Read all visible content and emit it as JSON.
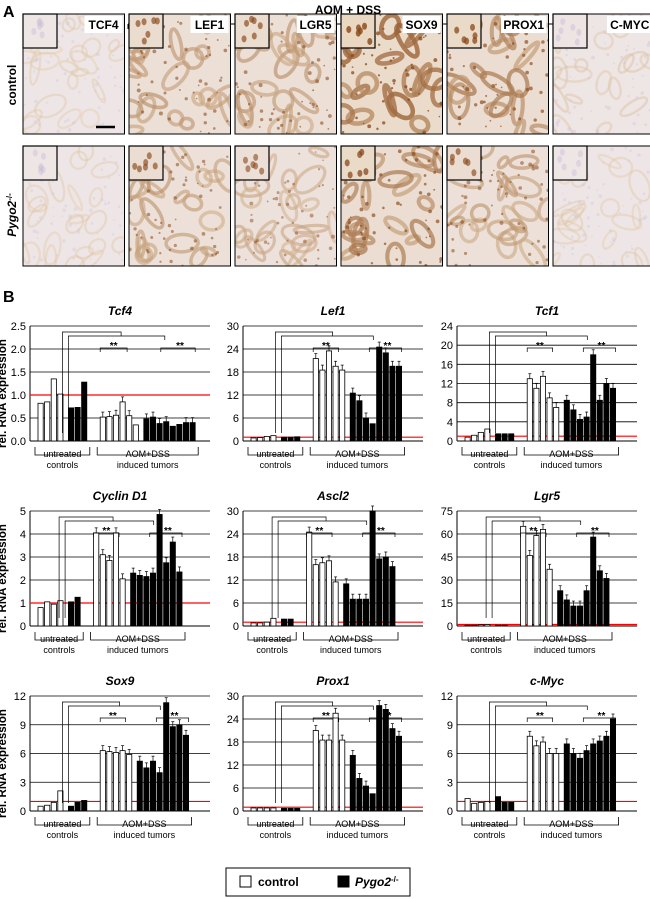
{
  "panel_a": {
    "label": "A",
    "treatment": "AOM + DSS",
    "row_labels": [
      "control",
      "Pygo2"
    ],
    "row_label_sup": "-/-",
    "columns": [
      "TCF4",
      "LEF1",
      "LGR5",
      "SOX9",
      "PROX1",
      "C-MYC"
    ],
    "stain_intensity": {
      "control": [
        0.1,
        0.55,
        0.55,
        0.85,
        0.7,
        0.15
      ],
      "pygo2": [
        0.1,
        0.5,
        0.4,
        0.7,
        0.5,
        0.1
      ]
    },
    "colors": {
      "tissue": "#efe7ea",
      "stain_light": "#e6cfae",
      "stain_dark": "#8a4a1c",
      "hema": "#c9bdd8"
    }
  },
  "panel_b": {
    "label": "B",
    "ylabel": "rel. RNA expression",
    "group_labels": {
      "untreated_1": "untreated",
      "untreated_2": "controls",
      "aom_1": "AOM+DSS",
      "aom_2": "induced  tumors"
    },
    "significance": "**",
    "legend": {
      "control": "control",
      "pygo2": "Pygo2",
      "pygo2_sup": "-/-"
    },
    "colors": {
      "control_fill": "#ffffff",
      "pygo2_fill": "#000000",
      "reference_line": "#ff0000"
    }
  },
  "chart_data": [
    {
      "type": "bar",
      "title": "Tcf4",
      "ylabel": "rel. RNA expression",
      "ylim": [
        0,
        2.5
      ],
      "yticks": [
        "0.0",
        "0.5",
        "1.0",
        "1.5",
        "2.0",
        "2.5"
      ],
      "reference": 1,
      "series": [
        {
          "name": "control",
          "group": "untreated",
          "values": [
            0.82,
            0.85,
            1.35,
            1.02
          ]
        },
        {
          "name": "Pygo2-/-",
          "group": "untreated",
          "values": [
            0.72,
            0.73,
            1.28
          ]
        },
        {
          "name": "control",
          "group": "AOM+DSS",
          "values": [
            0.52,
            0.53,
            0.56,
            0.85,
            0.55,
            0.35
          ]
        },
        {
          "name": "Pygo2-/-",
          "group": "AOM+DSS",
          "values": [
            0.48,
            0.52,
            0.38,
            0.42,
            0.32,
            0.36,
            0.4,
            0.4
          ]
        }
      ]
    },
    {
      "type": "bar",
      "title": "Lef1",
      "ylabel": "",
      "ylim": [
        0,
        30
      ],
      "yticks": [
        "0",
        "6",
        "12",
        "18",
        "24",
        "30"
      ],
      "reference": 1,
      "series": [
        {
          "name": "control",
          "group": "untreated",
          "values": [
            0.8,
            0.9,
            1.2,
            1.4
          ]
        },
        {
          "name": "Pygo2-/-",
          "group": "untreated",
          "values": [
            1.0,
            1.0,
            1.1
          ]
        },
        {
          "name": "control",
          "group": "AOM+DSS",
          "values": [
            21.5,
            18.5,
            23.5,
            19.5,
            18.5
          ]
        },
        {
          "name": "Pygo2-/-",
          "group": "AOM+DSS",
          "values": [
            12.5,
            10.5,
            6,
            4.5,
            24.5,
            23,
            19.5,
            19.5
          ]
        }
      ]
    },
    {
      "type": "bar",
      "title": "Tcf1",
      "ylabel": "",
      "ylim": [
        0,
        24
      ],
      "yticks": [
        "0",
        "4",
        "8",
        "12",
        "16",
        "20",
        "24"
      ],
      "reference": 1,
      "series": [
        {
          "name": "control",
          "group": "untreated",
          "values": [
            0.8,
            1.2,
            1.8,
            2.5
          ]
        },
        {
          "name": "Pygo2-/-",
          "group": "untreated",
          "values": [
            1.5,
            1.5,
            1.5
          ]
        },
        {
          "name": "control",
          "group": "AOM+DSS",
          "values": [
            13,
            11,
            13.5,
            9,
            7
          ]
        },
        {
          "name": "Pygo2-/-",
          "group": "AOM+DSS",
          "values": [
            8.5,
            6.5,
            4.5,
            5,
            18,
            8.5,
            12,
            11
          ]
        }
      ]
    },
    {
      "type": "bar",
      "title": "Cyclin D1",
      "ylabel": "rel. RNA expression",
      "ylim": [
        0,
        5
      ],
      "yticks": [
        "0",
        "1",
        "2",
        "3",
        "4",
        "5"
      ],
      "reference": 1,
      "series": [
        {
          "name": "control",
          "group": "untreated",
          "values": [
            0.8,
            1.05,
            0.95,
            1.1
          ]
        },
        {
          "name": "Pygo2-/-",
          "group": "untreated",
          "values": [
            1.05,
            1.25
          ]
        },
        {
          "name": "control",
          "group": "AOM+DSS",
          "values": [
            4.05,
            3.1,
            2.85,
            4.05,
            2.05
          ]
        },
        {
          "name": "Pygo2-/-",
          "group": "AOM+DSS",
          "values": [
            2.3,
            2.2,
            2.15,
            2.3,
            4.85,
            2.75,
            3.65,
            2.35
          ]
        }
      ]
    },
    {
      "type": "bar",
      "title": "Ascl2",
      "ylabel": "",
      "ylim": [
        0,
        30
      ],
      "yticks": [
        "0",
        "6",
        "12",
        "18",
        "24",
        "30"
      ],
      "reference": 1,
      "series": [
        {
          "name": "control",
          "group": "untreated",
          "values": [
            0.8,
            0.8,
            1.0,
            2.0
          ]
        },
        {
          "name": "Pygo2-/-",
          "group": "untreated",
          "values": [
            1.8,
            1.8
          ]
        },
        {
          "name": "control",
          "group": "AOM+DSS",
          "values": [
            24.5,
            16,
            16.5,
            17,
            11.5
          ]
        },
        {
          "name": "Pygo2-/-",
          "group": "AOM+DSS",
          "values": [
            11,
            7,
            7,
            7,
            30,
            17.5,
            18,
            15.5
          ]
        }
      ]
    },
    {
      "type": "bar",
      "title": "Lgr5",
      "ylabel": "",
      "ylim": [
        0,
        75
      ],
      "yticks": [
        "0",
        "15",
        "30",
        "45",
        "60",
        "75"
      ],
      "reference": 1,
      "series": [
        {
          "name": "control",
          "group": "untreated",
          "values": [
            0.5,
            0.5,
            0.8,
            1.0
          ]
        },
        {
          "name": "Pygo2-/-",
          "group": "untreated",
          "values": [
            0.5,
            0.5
          ]
        },
        {
          "name": "control",
          "group": "AOM+DSS",
          "values": [
            65,
            46,
            59,
            63,
            37
          ]
        },
        {
          "name": "Pygo2-/-",
          "group": "AOM+DSS",
          "values": [
            23,
            17,
            13,
            13,
            23,
            58,
            36,
            31
          ]
        }
      ]
    },
    {
      "type": "bar",
      "title": "Sox9",
      "ylabel": "rel. RNA expression",
      "ylim": [
        0,
        12
      ],
      "yticks": [
        "0",
        "3",
        "6",
        "9",
        "12"
      ],
      "reference": 1,
      "series": [
        {
          "name": "control",
          "group": "untreated",
          "values": [
            0.5,
            0.6,
            0.9,
            2.1
          ]
        },
        {
          "name": "Pygo2-/-",
          "group": "untreated",
          "values": [
            0.5,
            0.9,
            1.1
          ]
        },
        {
          "name": "control",
          "group": "AOM+DSS",
          "values": [
            6.3,
            6.2,
            6.1,
            6.3,
            5.9
          ]
        },
        {
          "name": "Pygo2-/-",
          "group": "AOM+DSS",
          "values": [
            5.2,
            4.5,
            5.2,
            4.0,
            11.3,
            8.8,
            9.0,
            7.9
          ]
        }
      ]
    },
    {
      "type": "bar",
      "title": "Prox1",
      "ylabel": "",
      "ylim": [
        0,
        30
      ],
      "yticks": [
        "0",
        "6",
        "12",
        "18",
        "24",
        "30"
      ],
      "reference": 1,
      "series": [
        {
          "name": "control",
          "group": "untreated",
          "values": [
            0.8,
            0.8,
            0.8,
            0.8
          ]
        },
        {
          "name": "Pygo2-/-",
          "group": "untreated",
          "values": [
            0.7,
            0.7,
            0.7
          ]
        },
        {
          "name": "control",
          "group": "AOM+DSS",
          "values": [
            21,
            18.5,
            18.5,
            25.5,
            18.5
          ]
        },
        {
          "name": "Pygo2-/-",
          "group": "AOM+DSS",
          "values": [
            14.5,
            8.5,
            6.5,
            4.5,
            27.5,
            26.5,
            21.5,
            19.5
          ]
        }
      ]
    },
    {
      "type": "bar",
      "title": "c-Myc",
      "ylabel": "",
      "ylim": [
        0,
        12
      ],
      "yticks": [
        "0",
        "3",
        "6",
        "9",
        "12"
      ],
      "reference": 1,
      "series": [
        {
          "name": "control",
          "group": "untreated",
          "values": [
            1.3,
            0.8,
            0.9,
            1.0
          ]
        },
        {
          "name": "Pygo2-/-",
          "group": "untreated",
          "values": [
            1.5,
            0.9,
            0.9
          ]
        },
        {
          "name": "control",
          "group": "AOM+DSS",
          "values": [
            7.8,
            6.8,
            7.2,
            6.0,
            6.0
          ]
        },
        {
          "name": "Pygo2-/-",
          "group": "AOM+DSS",
          "values": [
            7.0,
            6.0,
            5.5,
            6.3,
            7.0,
            7.3,
            7.8,
            9.6
          ]
        }
      ]
    }
  ]
}
